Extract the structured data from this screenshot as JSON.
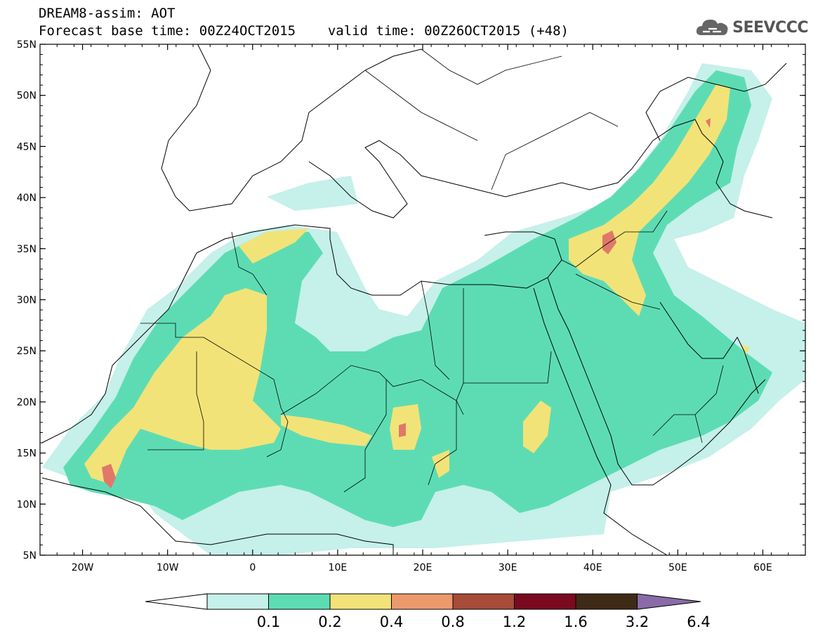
{
  "title": {
    "line1": "DREAM8-assim: AOT",
    "base_time": "Forecast base time: 00Z24OCT2015",
    "valid_time": "valid time: 00Z26OCT2015 (+48)"
  },
  "logo": {
    "text": "SEEVCCC",
    "icon": "cloud-icon"
  },
  "map": {
    "lon_range": [
      -25,
      65
    ],
    "lat_range": [
      5,
      55
    ],
    "lon_ticks": [
      {
        "value": -20,
        "label": "20W"
      },
      {
        "value": -10,
        "label": "10W"
      },
      {
        "value": 0,
        "label": "0"
      },
      {
        "value": 10,
        "label": "10E"
      },
      {
        "value": 20,
        "label": "20E"
      },
      {
        "value": 30,
        "label": "30E"
      },
      {
        "value": 40,
        "label": "40E"
      },
      {
        "value": 50,
        "label": "50E"
      },
      {
        "value": 60,
        "label": "60E"
      }
    ],
    "lat_ticks": [
      {
        "value": 55,
        "label": "55N"
      },
      {
        "value": 50,
        "label": "50N"
      },
      {
        "value": 45,
        "label": "45N"
      },
      {
        "value": 40,
        "label": "40N"
      },
      {
        "value": 35,
        "label": "35N"
      },
      {
        "value": 30,
        "label": "30N"
      },
      {
        "value": 25,
        "label": "25N"
      },
      {
        "value": 20,
        "label": "20N"
      },
      {
        "value": 15,
        "label": "15N"
      },
      {
        "value": 10,
        "label": "10N"
      },
      {
        "value": 5,
        "label": "5N"
      }
    ]
  },
  "colorbar": {
    "levels": [
      {
        "label": "0.1",
        "color": "#c6f0ea"
      },
      {
        "label": "0.2",
        "color": "#5ddcb4"
      },
      {
        "label": "0.4",
        "color": "#f2e378"
      },
      {
        "label": "0.8",
        "color": "#ec9a6c"
      },
      {
        "label": "1.2",
        "color": "#a84c3a"
      },
      {
        "label": "1.6",
        "color": "#7a0a20"
      },
      {
        "label": "3.2",
        "color": "#3f2a16"
      },
      {
        "label": "6.4",
        "color": ""
      }
    ],
    "low_color": "#ffffff",
    "high_color": "#8a6aa8"
  },
  "colors": {
    "c1": "#c6f0ea",
    "c2": "#5ddcb4",
    "c3": "#f2e378",
    "c4": "#e0786a",
    "border": "#000000"
  }
}
